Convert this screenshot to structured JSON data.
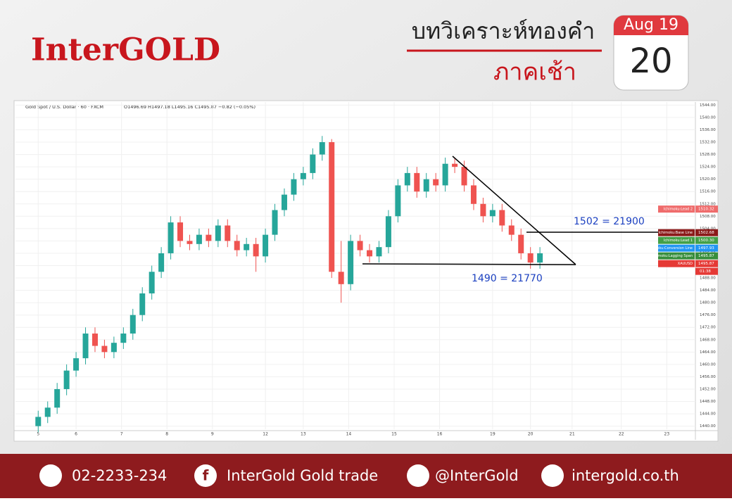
{
  "header": {
    "logo": "InterGOLD",
    "title": "บทวิเคราะห์ทองคำ",
    "subtitle": "ภาคเช้า",
    "calendar": {
      "month": "Aug 19",
      "day": "20"
    }
  },
  "chart_data": {
    "type": "candlestick",
    "symbol": "Gold Spot / U.S. Dollar · 60 · FXCM",
    "ohlc_text": "O1496.69  H1497.18  L1495.16  C1495.87  −0.82 (−0.05%)",
    "x": [
      0,
      0.25,
      0.5,
      0.75,
      1,
      1.25,
      1.5,
      1.75,
      2,
      2.25,
      2.5,
      2.75,
      3,
      3.25,
      3.5,
      3.75,
      4,
      4.25,
      4.5,
      4.75,
      5,
      5.25,
      5.5,
      5.75,
      6,
      6.25,
      6.5,
      6.75,
      7,
      7.25,
      7.5,
      7.75,
      8,
      8.25,
      8.5,
      8.75,
      9,
      9.25,
      9.5,
      9.75,
      10,
      10.25,
      10.5,
      10.75,
      11,
      11.25,
      11.5,
      11.75,
      12,
      12.25,
      12.5,
      12.75,
      13,
      13.25
    ],
    "open": [
      1440,
      1443,
      1446,
      1452,
      1458,
      1462,
      1470,
      1466,
      1464,
      1467,
      1470,
      1476,
      1483,
      1490,
      1496,
      1506,
      1500,
      1499,
      1502,
      1500,
      1505,
      1500,
      1497,
      1499,
      1495,
      1502,
      1510,
      1515,
      1520,
      1522,
      1528,
      1532,
      1490,
      1486,
      1500,
      1497,
      1495,
      1498,
      1508,
      1518,
      1522,
      1516,
      1520,
      1518,
      1525,
      1524,
      1518,
      1512,
      1508,
      1510,
      1505,
      1502,
      1496,
      1493
    ],
    "high": [
      1445,
      1448,
      1454,
      1460,
      1464,
      1472,
      1472,
      1468,
      1469,
      1472,
      1478,
      1485,
      1492,
      1498,
      1508,
      1508,
      1502,
      1504,
      1504,
      1507,
      1507,
      1502,
      1501,
      1501,
      1504,
      1512,
      1517,
      1522,
      1524,
      1530,
      1534,
      1533,
      1500,
      1502,
      1502,
      1499,
      1500,
      1510,
      1520,
      1524,
      1524,
      1522,
      1522,
      1527,
      1527,
      1526,
      1520,
      1514,
      1512,
      1512,
      1507,
      1504,
      1498,
      1498
    ],
    "low": [
      1438,
      1441,
      1444,
      1450,
      1456,
      1460,
      1464,
      1462,
      1462,
      1465,
      1468,
      1474,
      1481,
      1488,
      1494,
      1498,
      1497,
      1497,
      1498,
      1498,
      1498,
      1495,
      1495,
      1490,
      1493,
      1500,
      1508,
      1513,
      1518,
      1520,
      1526,
      1488,
      1480,
      1484,
      1495,
      1493,
      1493,
      1496,
      1506,
      1516,
      1514,
      1514,
      1516,
      1516,
      1522,
      1516,
      1510,
      1506,
      1506,
      1503,
      1500,
      1494,
      1491,
      1491
    ],
    "close": [
      1443,
      1446,
      1452,
      1458,
      1462,
      1470,
      1466,
      1464,
      1467,
      1470,
      1476,
      1483,
      1490,
      1496,
      1506,
      1500,
      1499,
      1502,
      1500,
      1505,
      1500,
      1497,
      1499,
      1495,
      1502,
      1510,
      1515,
      1520,
      1522,
      1528,
      1532,
      1490,
      1486,
      1500,
      1497,
      1495,
      1498,
      1508,
      1518,
      1522,
      1516,
      1520,
      1518,
      1525,
      1524,
      1518,
      1512,
      1508,
      1510,
      1505,
      1502,
      1496,
      1493,
      1496
    ],
    "up_color": "#26a69a",
    "down_color": "#ef5350",
    "xlim": [
      -0.6,
      17.3
    ],
    "xticks": [
      {
        "value": 0,
        "label": "5"
      },
      {
        "value": 1,
        "label": "6"
      },
      {
        "value": 2.2,
        "label": "7"
      },
      {
        "value": 3.4,
        "label": "8"
      },
      {
        "value": 4.6,
        "label": "9"
      },
      {
        "value": 6,
        "label": "12"
      },
      {
        "value": 7,
        "label": "13"
      },
      {
        "value": 8.2,
        "label": "14"
      },
      {
        "value": 9.4,
        "label": "15"
      },
      {
        "value": 10.6,
        "label": "16"
      },
      {
        "value": 12,
        "label": "19"
      },
      {
        "value": 13,
        "label": "20"
      },
      {
        "value": 14.1,
        "label": "21"
      },
      {
        "value": 15.4,
        "label": "22"
      },
      {
        "value": 16.6,
        "label": "23"
      }
    ],
    "ylim": [
      1439,
      1545
    ],
    "yticks": [
      {
        "value": 1440,
        "label": "1440.00"
      },
      {
        "value": 1444,
        "label": "1444.00"
      },
      {
        "value": 1448,
        "label": "1448.00"
      },
      {
        "value": 1452,
        "label": "1452.00"
      },
      {
        "value": 1456,
        "label": "1456.00"
      },
      {
        "value": 1460,
        "label": "1460.00"
      },
      {
        "value": 1464,
        "label": "1464.00"
      },
      {
        "value": 1468,
        "label": "1468.00"
      },
      {
        "value": 1472,
        "label": "1472.00"
      },
      {
        "value": 1476,
        "label": "1476.00"
      },
      {
        "value": 1480,
        "label": "1480.00"
      },
      {
        "value": 1484,
        "label": "1484.00"
      },
      {
        "value": 1488,
        "label": "1488.00"
      },
      {
        "value": 1492,
        "label": "1492.00"
      },
      {
        "value": 1496,
        "label": "1496.00"
      },
      {
        "value": 1500,
        "label": "1500.00"
      },
      {
        "value": 1504,
        "label": "1504.00"
      },
      {
        "value": 1508,
        "label": "1508.00"
      },
      {
        "value": 1512,
        "label": "1512.00"
      },
      {
        "value": 1516,
        "label": "1516.00"
      },
      {
        "value": 1520,
        "label": "1520.00"
      },
      {
        "value": 1524,
        "label": "1524.00"
      },
      {
        "value": 1528,
        "label": "1528.00"
      },
      {
        "value": 1532,
        "label": "1532.00"
      },
      {
        "value": 1536,
        "label": "1536.00"
      },
      {
        "value": 1540,
        "label": "1540.00"
      },
      {
        "value": 1544,
        "label": "1544.00"
      }
    ],
    "grid": true,
    "annotations": [
      "1502 = 21900",
      "1490 = 21770"
    ],
    "price_tags": [
      {
        "name": "Ichimoku:Lead 2",
        "value": "1510.32",
        "color": "#ef6b6b"
      },
      {
        "name": "Ichimoku:Base Line",
        "value": "1502.68",
        "color": "#8b1a1a"
      },
      {
        "name": "Ichimoku:Lead 1",
        "value": "1500.30",
        "color": "#43a047"
      },
      {
        "name": "Ichimoku:Conversion Line",
        "value": "1497.93",
        "color": "#2196f3"
      },
      {
        "name": "Ichimoku:Lagging Span",
        "value": "1495.87",
        "color": "#388e3c"
      },
      {
        "name": "XAUUSD",
        "value": "1495.87",
        "color": "#e53935"
      }
    ],
    "countdown": "01:38"
  },
  "footer": {
    "phone": "02-2233-234",
    "facebook": "InterGold Gold trade",
    "line": "@InterGold",
    "website": "intergold.co.th"
  }
}
